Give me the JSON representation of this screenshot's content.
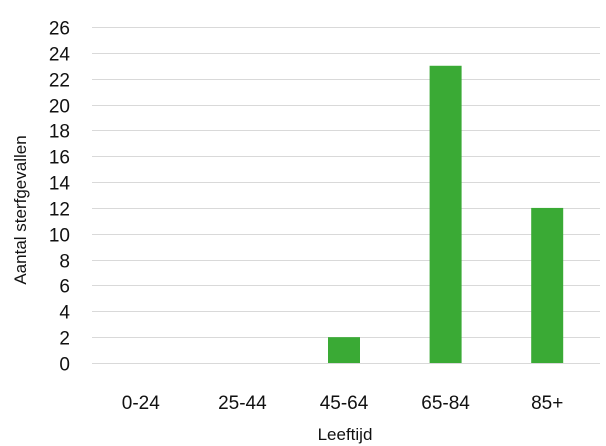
{
  "chart_data": {
    "type": "bar",
    "title": "",
    "xlabel": "Leeftijd",
    "ylabel": "Aantal sterfgevallen",
    "categories": [
      "0-24",
      "25-44",
      "45-64",
      "65-84",
      "85+"
    ],
    "values": [
      0,
      0,
      2,
      23,
      12
    ],
    "ylim": [
      0,
      26
    ],
    "yticks": [
      0,
      2,
      4,
      6,
      8,
      10,
      12,
      14,
      16,
      18,
      20,
      22,
      24,
      26
    ],
    "grid": true,
    "legend": "none",
    "colors": {
      "bar": "#3aaa35",
      "grid": "#d9d9d9",
      "text": "#111111"
    }
  }
}
